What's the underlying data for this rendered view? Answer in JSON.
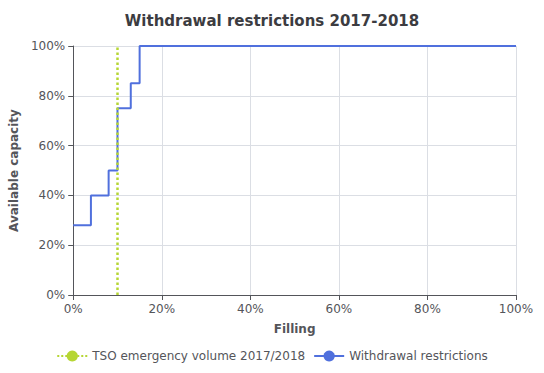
{
  "chart_data": {
    "type": "line",
    "title": "Withdrawal restrictions 2017-2018",
    "xlabel": "Filling",
    "ylabel": "Available capacity",
    "x": [
      0.0,
      0.04,
      0.04,
      0.08,
      0.08,
      0.1,
      0.1,
      0.13,
      0.13,
      0.15,
      0.15,
      0.18,
      0.18,
      1.0
    ],
    "series": [
      {
        "name": "Withdrawal restrictions",
        "line_style": "solid",
        "values": [
          0.28,
          0.28,
          0.4,
          0.4,
          0.5,
          0.5,
          0.75,
          0.75,
          0.85,
          0.85,
          1.0,
          1.0,
          1.0,
          1.0
        ]
      }
    ],
    "reference_lines": [
      {
        "x": 0.1,
        "name": "TSO emergency volume 2017/2018",
        "line_style": "dotted"
      }
    ],
    "xlim": [
      0,
      1
    ],
    "ylim": [
      0,
      1
    ],
    "xticks": [
      {
        "value": 0,
        "label": "0%"
      },
      {
        "value": 0.2,
        "label": "20%"
      },
      {
        "value": 0.4,
        "label": "40%"
      },
      {
        "value": 0.6,
        "label": "60%"
      },
      {
        "value": 0.8,
        "label": "80%"
      },
      {
        "value": 1.0,
        "label": "100%"
      }
    ],
    "yticks": [
      {
        "value": 0,
        "label": "0%"
      },
      {
        "value": 0.2,
        "label": "20%"
      },
      {
        "value": 0.4,
        "label": "40%"
      },
      {
        "value": 0.6,
        "label": "60%"
      },
      {
        "value": 0.8,
        "label": "80%"
      },
      {
        "value": 1.0,
        "label": "100%"
      }
    ],
    "grid": true,
    "legend": "bottom"
  }
}
